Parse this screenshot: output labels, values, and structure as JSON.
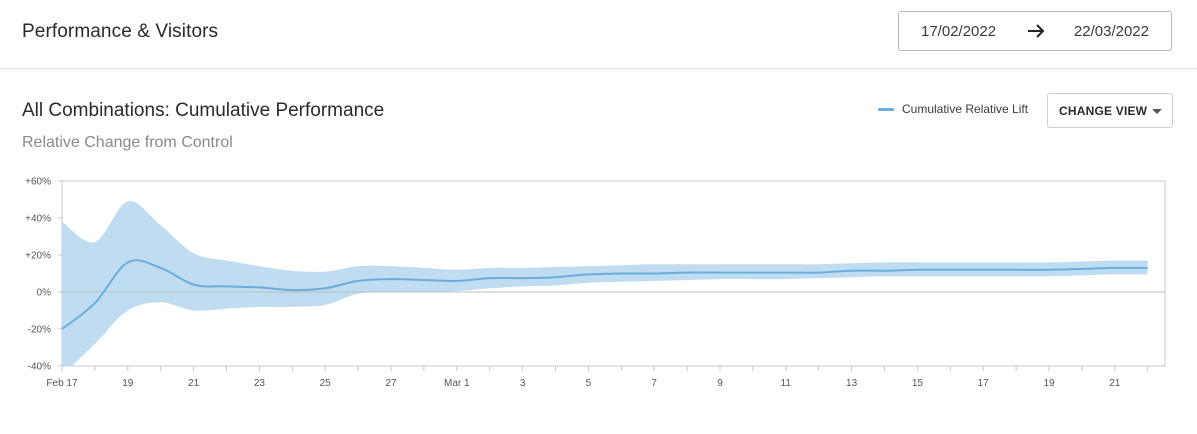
{
  "header": {
    "title": "Performance & Visitors",
    "date_start": "17/02/2022",
    "date_end": "22/03/2022"
  },
  "section": {
    "title": "All Combinations: Cumulative Performance",
    "subtitle": "Relative Change from Control",
    "legend_label": "Cumulative Relative Lift",
    "change_view_label": "CHANGE VIEW"
  },
  "colors": {
    "line": "#6aaee0",
    "band": "#c0dcf0",
    "axis": "#c8c8c8"
  },
  "chart_data": {
    "type": "area",
    "ylim": [
      -40,
      60
    ],
    "y_ticks": [
      60,
      40,
      20,
      0,
      -20,
      -40
    ],
    "y_tick_labels": [
      "+60%",
      "+40%",
      "+20%",
      "0%",
      "-20%",
      "-40%"
    ],
    "x_tick_labels": [
      "Feb 17",
      "19",
      "21",
      "23",
      "25",
      "27",
      "Mar 1",
      "3",
      "5",
      "7",
      "9",
      "11",
      "13",
      "15",
      "17",
      "19",
      "21"
    ],
    "x_start": "2022-02-17",
    "x_end": "2022-03-22",
    "series": [
      {
        "name": "Cumulative Relative Lift",
        "x": [
          "2022-02-17",
          "2022-02-18",
          "2022-02-19",
          "2022-02-20",
          "2022-02-21",
          "2022-02-22",
          "2022-02-23",
          "2022-02-24",
          "2022-02-25",
          "2022-02-26",
          "2022-02-27",
          "2022-02-28",
          "2022-03-01",
          "2022-03-02",
          "2022-03-03",
          "2022-03-04",
          "2022-03-05",
          "2022-03-06",
          "2022-03-07",
          "2022-03-08",
          "2022-03-09",
          "2022-03-10",
          "2022-03-11",
          "2022-03-12",
          "2022-03-13",
          "2022-03-14",
          "2022-03-15",
          "2022-03-16",
          "2022-03-17",
          "2022-03-18",
          "2022-03-19",
          "2022-03-20",
          "2022-03-21",
          "2022-03-22"
        ],
        "values": [
          -20,
          -6,
          16,
          13,
          4,
          3,
          2.5,
          1,
          2,
          6,
          7,
          6.5,
          6,
          7.5,
          7.5,
          8,
          9.5,
          10,
          10,
          10.5,
          10.5,
          10.5,
          10.5,
          10.5,
          11.5,
          11.5,
          12,
          12,
          12,
          12,
          12,
          12.5,
          13,
          13
        ],
        "lower": [
          -45,
          -28,
          -10,
          -5.5,
          -10,
          -9,
          -8,
          -8,
          -7,
          -1,
          0,
          0,
          0.5,
          2,
          3,
          3.5,
          5,
          5.5,
          6,
          6.5,
          7,
          7,
          7,
          7.5,
          8,
          8.5,
          8.5,
          8.5,
          8.5,
          8.5,
          8.5,
          9,
          9.5,
          9.5
        ],
        "upper": [
          38,
          27,
          49,
          36,
          21,
          17,
          14,
          11.5,
          11,
          14,
          14,
          13,
          12,
          13,
          13,
          13.5,
          14,
          14.5,
          15,
          15,
          15,
          15,
          15,
          15,
          15.5,
          16,
          16,
          16,
          16,
          16,
          16,
          16.5,
          17,
          17
        ]
      }
    ],
    "grid": false,
    "legend": "top-right"
  }
}
